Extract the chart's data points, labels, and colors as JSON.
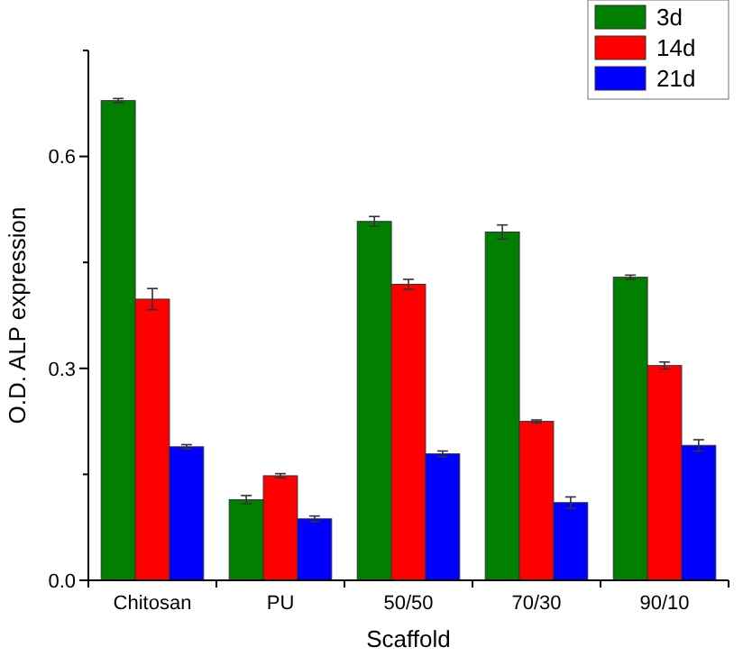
{
  "chart_data": {
    "type": "bar",
    "xlabel": "Scaffold",
    "ylabel": "O.D. ALP expression",
    "categories": [
      "Chitosan",
      "PU",
      "50/50",
      "70/30",
      "90/10"
    ],
    "series": [
      {
        "name": "3d",
        "color": "#007f00",
        "values": [
          0.679,
          0.114,
          0.508,
          0.493,
          0.429
        ],
        "errors": [
          0.003,
          0.006,
          0.007,
          0.01,
          0.003
        ]
      },
      {
        "name": "14d",
        "color": "#ff0000",
        "values": [
          0.398,
          0.148,
          0.419,
          0.225,
          0.304
        ],
        "errors": [
          0.015,
          0.003,
          0.007,
          0.002,
          0.005
        ]
      },
      {
        "name": "21d",
        "color": "#0000ff",
        "values": [
          0.189,
          0.087,
          0.179,
          0.11,
          0.191
        ],
        "errors": [
          0.003,
          0.004,
          0.004,
          0.008,
          0.008
        ]
      }
    ],
    "ylim": [
      0,
      0.75
    ],
    "yticks": [
      {
        "value": 0,
        "label": "0.0"
      },
      {
        "value": 0.15,
        "label": null
      },
      {
        "value": 0.3,
        "label": "0.3"
      },
      {
        "value": 0.45,
        "label": null
      },
      {
        "value": 0.6,
        "label": "0.6"
      },
      {
        "value": 0.75,
        "label": null
      }
    ],
    "legend": "top right",
    "grid": false
  }
}
